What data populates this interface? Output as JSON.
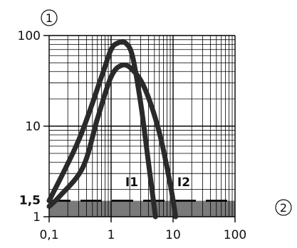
{
  "chart_data": {
    "type": "line",
    "x_scale": "log",
    "y_scale": "log",
    "xlim": [
      0.1,
      100
    ],
    "ylim": [
      1,
      100
    ],
    "x_ticks": [
      {
        "value": 0.1,
        "label": "0,1"
      },
      {
        "value": 1,
        "label": "1"
      },
      {
        "value": 10,
        "label": "10"
      },
      {
        "value": 100,
        "label": "100"
      }
    ],
    "y_ticks": [
      {
        "value": 100,
        "label": "100"
      },
      {
        "value": 10,
        "label": "10"
      },
      {
        "value": 1,
        "label": "1"
      }
    ],
    "reference_line": {
      "value": 1.5,
      "label": "1,5",
      "style": "dashed"
    },
    "shaded_band": {
      "from": 1,
      "to": 1.5,
      "color": "#7a7a7a"
    },
    "axis_markers": {
      "y_marker": "1",
      "x_marker": "2"
    },
    "series": [
      {
        "name": "I1",
        "color": "#2a2a2a",
        "points": [
          [
            0.1,
            1.5
          ],
          [
            0.3,
            7
          ],
          [
            0.7,
            35
          ],
          [
            1.0,
            70
          ],
          [
            1.3,
            83
          ],
          [
            1.7,
            83
          ],
          [
            2.2,
            60
          ],
          [
            3.0,
            18
          ],
          [
            4.0,
            4
          ],
          [
            5.2,
            1.0
          ]
        ]
      },
      {
        "name": "I2",
        "color": "#2a2a2a",
        "points": [
          [
            0.1,
            1.3
          ],
          [
            0.15,
            1.7
          ],
          [
            0.35,
            3.5
          ],
          [
            0.6,
            12
          ],
          [
            1.0,
            35
          ],
          [
            1.5,
            47
          ],
          [
            2.2,
            42
          ],
          [
            3.5,
            26
          ],
          [
            6.0,
            8.5
          ],
          [
            9.0,
            2.3
          ],
          [
            11.0,
            1.0
          ]
        ]
      }
    ]
  }
}
